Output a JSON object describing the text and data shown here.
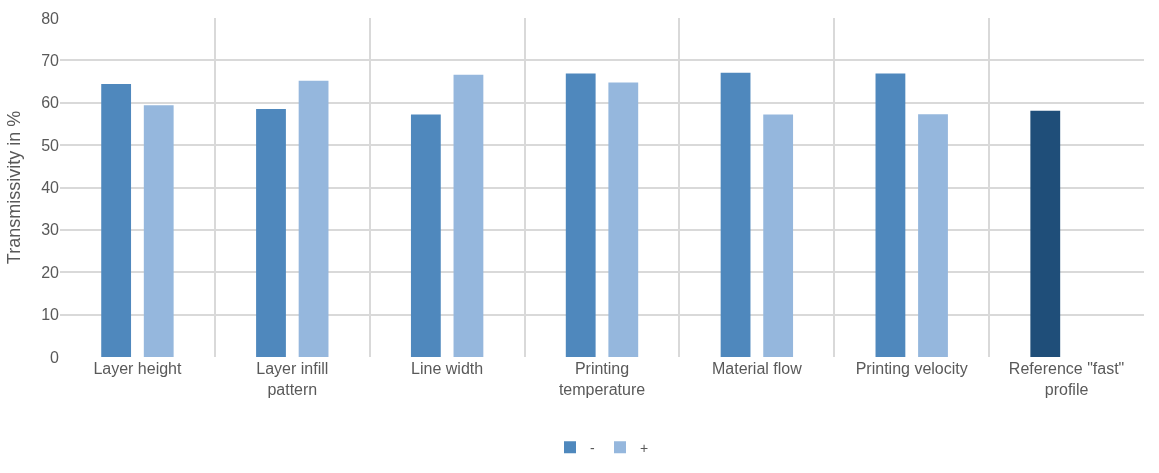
{
  "chart_data": {
    "type": "bar",
    "ylabel": "Transmissivity in %",
    "categories": [
      "Layer height",
      "Layer infill pattern",
      "Line width",
      "Printing temperature",
      "Material flow",
      "Printing velocity",
      "Reference \"fast\" profile"
    ],
    "series": [
      {
        "name": "-",
        "color": "#4f88bd",
        "colors": [
          null,
          null,
          null,
          null,
          null,
          null,
          "#1f4e79"
        ],
        "values": [
          64.4,
          58.5,
          57.2,
          66.9,
          67.1,
          66.9,
          58.1
        ]
      },
      {
        "name": "+",
        "color": "#95b7dd",
        "values": [
          59.4,
          65.2,
          66.6,
          64.8,
          57.2,
          57.3,
          null
        ]
      }
    ],
    "ylim": [
      0,
      80
    ],
    "yticks": [
      0,
      10,
      20,
      30,
      40,
      50,
      60,
      70,
      80
    ],
    "grid": true,
    "legend": "bottom"
  }
}
